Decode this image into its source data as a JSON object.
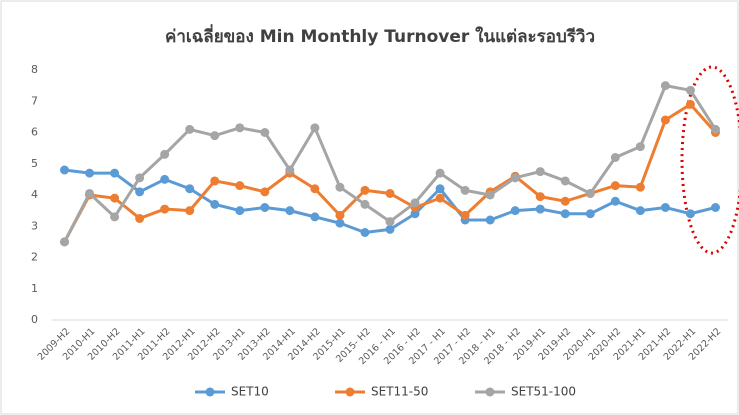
{
  "chart_data": {
    "type": "line",
    "title": "ค่าเฉลี่ยของ Min Monthly Turnover ในแต่ละรอบรีวิว",
    "categories": [
      "2009-H2",
      "2010-H1",
      "2010-H2",
      "2011-H1",
      "2011-H2",
      "2012-H1",
      "2012-H2",
      "2013-H1",
      "2013-H2",
      "2014-H1",
      "2014-H2",
      "2015-H1",
      "2015- H2",
      "2016 - H1",
      "2016 - H2",
      "2017 - H1",
      "2017 - H2",
      "2018 - H1",
      "2018 - H2",
      "2019-H1",
      "2019-H2",
      "2020-H1",
      "2020-H2",
      "2021-H1",
      "2021-H2",
      "2022-H1",
      "2022-H2"
    ],
    "series": [
      {
        "name": "SET10",
        "color": "#5b9bd5",
        "values": [
          4.8,
          4.7,
          4.7,
          4.1,
          4.5,
          4.2,
          3.7,
          3.5,
          3.6,
          3.5,
          3.3,
          3.1,
          2.8,
          2.9,
          3.4,
          4.2,
          3.2,
          3.2,
          3.5,
          3.55,
          3.4,
          3.4,
          3.8,
          3.5,
          3.6,
          3.4,
          3.6
        ]
      },
      {
        "name": "SET11-50",
        "color": "#ed7d31",
        "values": [
          2.5,
          4.0,
          3.9,
          3.25,
          3.55,
          3.5,
          4.45,
          4.3,
          4.1,
          4.7,
          4.2,
          3.35,
          4.15,
          4.05,
          3.6,
          3.9,
          3.35,
          4.1,
          4.6,
          3.95,
          3.8,
          4.05,
          4.3,
          4.25,
          6.4,
          6.9,
          6.0
        ]
      },
      {
        "name": "SET51-100",
        "color": "#a5a5a5",
        "values": [
          2.5,
          4.05,
          3.3,
          4.55,
          5.3,
          6.1,
          5.9,
          6.15,
          6.0,
          4.8,
          6.15,
          4.25,
          3.7,
          3.15,
          3.75,
          4.7,
          4.15,
          4.0,
          4.55,
          4.75,
          4.45,
          4.05,
          5.2,
          5.55,
          7.5,
          7.35,
          6.1
        ]
      }
    ],
    "ylim": [
      0,
      8
    ],
    "yticks": [
      0,
      1,
      2,
      3,
      4,
      5,
      6,
      7,
      8
    ],
    "grid": false
  }
}
